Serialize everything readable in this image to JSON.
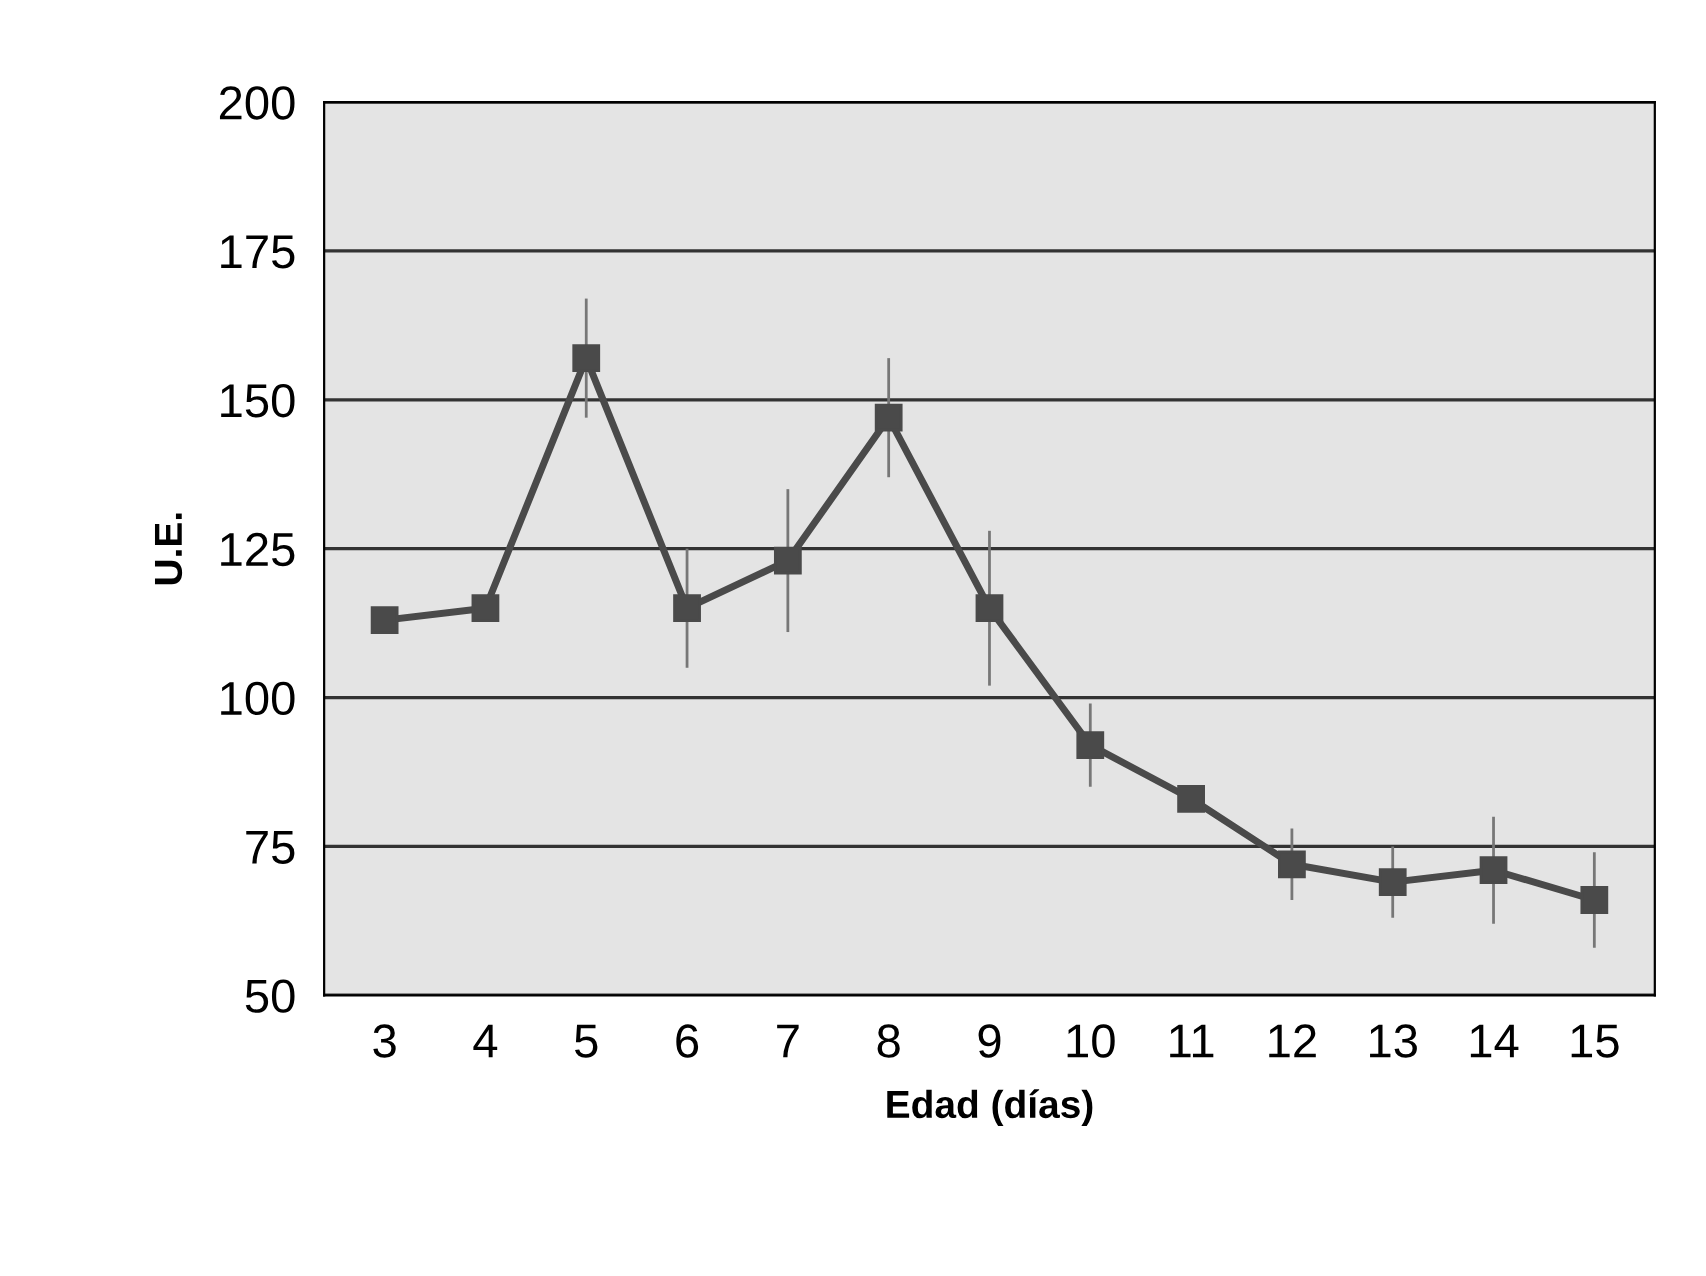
{
  "chart_data": {
    "type": "line",
    "xlabel": "Edad (días)",
    "ylabel": "U.E.",
    "categories": [
      "3",
      "4",
      "5",
      "6",
      "7",
      "8",
      "9",
      "10",
      "11",
      "12",
      "13",
      "14",
      "15"
    ],
    "series": [
      {
        "color": "#4a4a4a",
        "values": [
          113,
          115,
          157,
          115,
          123,
          147,
          115,
          92,
          83,
          72,
          69,
          71,
          66
        ],
        "errors": [
          null,
          null,
          10,
          10,
          12,
          10,
          13,
          7,
          null,
          6,
          6,
          9,
          8
        ]
      }
    ],
    "ylim": [
      50,
      200
    ],
    "yticks": [
      50,
      75,
      100,
      125,
      150,
      175,
      200
    ],
    "grid": "y",
    "marker": "square",
    "line_style": "solid"
  }
}
